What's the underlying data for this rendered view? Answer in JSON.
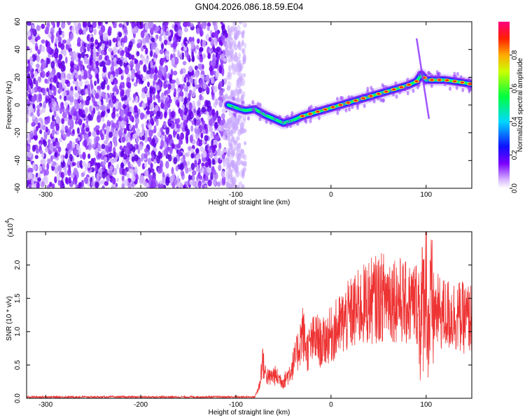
{
  "title": "GN04.2026.086.18.59.E04",
  "chart_data": [
    {
      "type": "heatmap",
      "name": "spectrogram",
      "xlabel": "Height of straight line (km)",
      "ylabel": "Frequency (Hz)",
      "xlim": [
        -320,
        148
      ],
      "ylim": [
        -60,
        60
      ],
      "xticks": [
        -300,
        -200,
        -100,
        0,
        100
      ],
      "yticks": [
        -60,
        -40,
        -20,
        0,
        20,
        40,
        60
      ],
      "colorbar": {
        "label": "Normalized spectral amplitude",
        "range": [
          0,
          1
        ],
        "ticks": [
          0.0,
          0.2,
          0.4,
          0.6,
          0.8
        ]
      },
      "noise_region_x": [
        -320,
        -90
      ],
      "signal_trace": {
        "x": [
          -108,
          -100,
          -90,
          -80,
          -70,
          -60,
          -50,
          -40,
          -30,
          -20,
          -10,
          0,
          10,
          20,
          30,
          40,
          50,
          60,
          70,
          80,
          90,
          95,
          100,
          110,
          120,
          130,
          140,
          148
        ],
        "y": [
          0,
          -2,
          -4,
          -3,
          -7,
          -10,
          -13,
          -11,
          -8,
          -6,
          -4,
          -2,
          0,
          2,
          4,
          6,
          8,
          10,
          12,
          14,
          17,
          22,
          18,
          18,
          18,
          17,
          16,
          15
        ]
      }
    },
    {
      "type": "line",
      "name": "snr",
      "xlabel": "Height of straight line (km)",
      "ylabel": "SNR (10 * v/v)",
      "scale_label": "(x10",
      "scale_exponent": "4",
      "xlim": [
        -320,
        148
      ],
      "ylim": [
        0,
        2.5
      ],
      "xticks": [
        -300,
        -200,
        -100,
        0,
        100
      ],
      "yticks": [
        0.0,
        0.5,
        1.0,
        1.5,
        2.0
      ],
      "color": "#ee3333",
      "envelope": {
        "x": [
          -320,
          -80,
          -75,
          -72,
          -70,
          -65,
          -60,
          -55,
          -50,
          -45,
          -40,
          -35,
          -30,
          -25,
          -20,
          -15,
          -10,
          -5,
          0,
          10,
          20,
          30,
          40,
          50,
          60,
          70,
          80,
          90,
          95,
          98,
          100,
          102,
          105,
          110,
          120,
          130,
          140,
          148
        ],
        "y": [
          0.02,
          0.02,
          0.2,
          0.6,
          0.4,
          0.3,
          0.35,
          0.3,
          0.25,
          0.35,
          0.5,
          0.7,
          1.0,
          0.7,
          0.85,
          0.9,
          0.8,
          0.9,
          0.95,
          1.1,
          1.25,
          1.35,
          1.45,
          1.5,
          1.55,
          1.5,
          1.4,
          1.45,
          1.2,
          1.6,
          2.0,
          1.0,
          1.35,
          1.3,
          1.25,
          1.25,
          1.2,
          1.2
        ]
      }
    }
  ]
}
